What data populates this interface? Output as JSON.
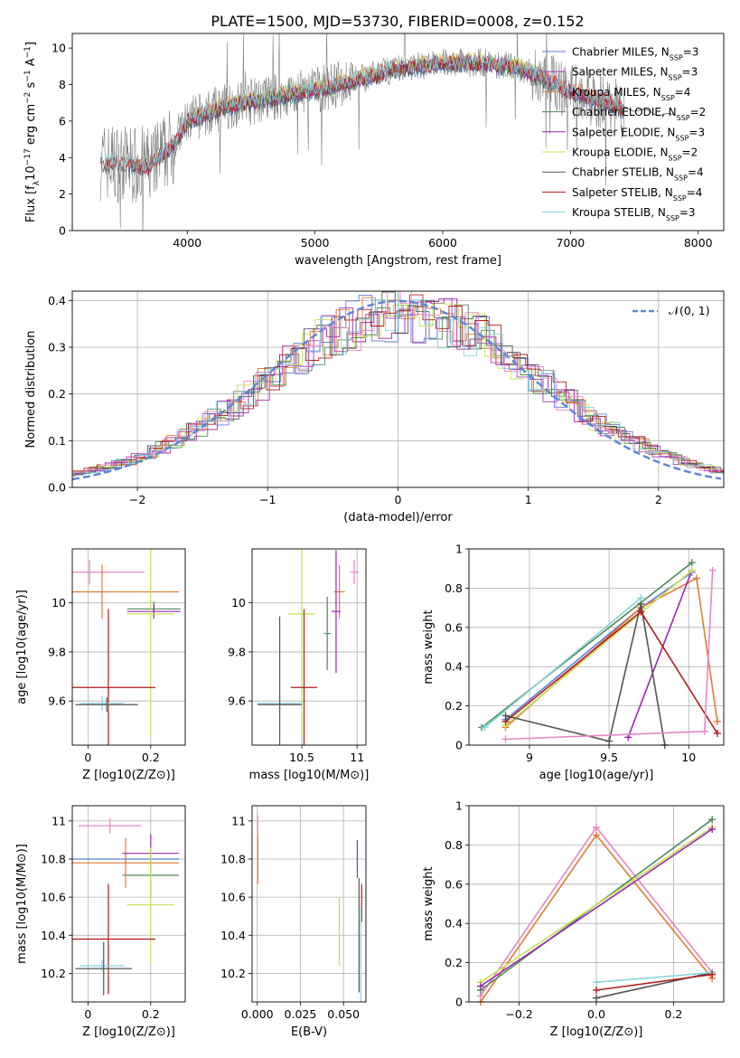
{
  "title": "PLATE=1500, MJD=53730, FIBERID=0008, z=0.152",
  "colors": {
    "Chabrier MILES": "#5b7fd6",
    "Salpeter MILES": "#a83bb5",
    "Kroupa MILES": "#e07b39",
    "Chabrier ELODIE": "#4f8a5c",
    "Salpeter ELODIE": "#9c27b0",
    "Kroupa ELODIE": "#c8e05a",
    "Chabrier STELIB": "#555555",
    "Salpeter STELIB": "#b01c1c",
    "Kroupa STELIB": "#87d4dc",
    "pink": "#e887c2",
    "data": "#808080",
    "normal": "#5b87d9"
  },
  "chart_data": [
    {
      "id": "spectrum",
      "type": "line",
      "xlabel": "wavelength [Angstrom, rest frame]",
      "ylabel": "Flux [f_λ 10^-17 erg cm^-2 s^-1 A^-1]",
      "xlim": [
        3100,
        8200
      ],
      "ylim": [
        0,
        10.8
      ],
      "xticks": [
        "4000",
        "5000",
        "6000",
        "7000",
        "8000"
      ],
      "yticks": [
        "0",
        "2",
        "4",
        "6",
        "8",
        "10"
      ],
      "legend_position": "top-right",
      "legend": [
        "Chabrier MILES, N_SSP=3",
        "Salpeter MILES, N_SSP=3",
        "Kroupa MILES, N_SSP=4",
        "Chabrier ELODIE, N_SSP=2",
        "Salpeter ELODIE, N_SSP=3",
        "Kroupa ELODIE, N_SSP=2",
        "Chabrier STELIB, N_SSP=4",
        "Salpeter STELIB, N_SSP=4",
        "Kroupa STELIB, N_SSP=3"
      ],
      "continuum": {
        "x": [
          3320,
          3500,
          3700,
          3900,
          4000,
          4300,
          4600,
          5000,
          5300,
          5600,
          6000,
          6300,
          6600,
          6800,
          6900,
          7000,
          7150,
          7300,
          7420
        ],
        "y": [
          3.8,
          3.7,
          3.5,
          4.8,
          6.0,
          6.8,
          7.2,
          7.7,
          8.2,
          8.8,
          9.2,
          9.2,
          8.9,
          8.3,
          8.0,
          7.6,
          7.3,
          7.0,
          6.6
        ]
      }
    },
    {
      "id": "residuals",
      "type": "line",
      "xlabel": "(data-model)/error",
      "ylabel": "Normed distribution",
      "xlim": [
        -2.5,
        2.5
      ],
      "ylim": [
        0,
        0.42
      ],
      "xticks": [
        "−2",
        "−1",
        "0",
        "1",
        "2"
      ],
      "yticks": [
        "0.0",
        "0.1",
        "0.2",
        "0.3",
        "0.4"
      ],
      "legend_position": "top-right",
      "legend": [
        "𝒩(0, 1)"
      ],
      "normal": {
        "mean": 0,
        "sigma": 1
      }
    },
    {
      "id": "age-vs-Z",
      "type": "scatter",
      "xlabel": "Z [log10(Z/Z⊙)]",
      "ylabel": "age  [log10(age/yr)]",
      "xlim": [
        -0.05,
        0.31
      ],
      "ylim": [
        9.42,
        10.22
      ],
      "xticks": [
        0,
        0.2
      ],
      "yticks": [
        9.6,
        9.8,
        10.0
      ],
      "points": [
        {
          "c": "pink",
          "x": 0.005,
          "y": 10.125,
          "xe": 0.175,
          "ye": 0.05
        },
        {
          "c": "Kroupa MILES",
          "x": 0.045,
          "y": 10.045,
          "xe": 0.245,
          "ye": 0.11
        },
        {
          "c": "Chabrier ELODIE",
          "x": 0.21,
          "y": 9.975,
          "xe": 0.085,
          "ye": 0.03
        },
        {
          "c": "Salpeter ELODIE",
          "x": 0.21,
          "y": 9.965,
          "xe": 0.085,
          "ye": 0.03
        },
        {
          "c": "Kroupa ELODIE",
          "x": 0.2,
          "y": 9.955,
          "xe": 0.075,
          "ye": 0.5
        },
        {
          "c": "Salpeter STELIB",
          "x": 0.065,
          "y": 9.655,
          "xe": 0.15,
          "ye": 0.32
        },
        {
          "c": "Kroupa STELIB",
          "x": 0.045,
          "y": 9.59,
          "xe": 0.07,
          "ye": 0.03
        },
        {
          "c": "Chabrier STELIB",
          "x": 0.06,
          "y": 9.585,
          "xe": 0.1,
          "ye": 0.03
        }
      ]
    },
    {
      "id": "age-vs-mass",
      "type": "scatter",
      "xlabel": "mass [log10(M/M⊙)]",
      "ylabel": "",
      "xlim": [
        10.05,
        11.08
      ],
      "ylim": [
        9.42,
        10.22
      ],
      "xticks": [
        10.5,
        11.0
      ],
      "yticks": [
        9.6,
        9.8,
        10.0
      ],
      "points": [
        {
          "c": "pink",
          "x": 10.975,
          "y": 10.125,
          "xe": 0.04,
          "ye": 0.05
        },
        {
          "c": "Kroupa MILES",
          "x": 10.84,
          "y": 10.045,
          "xe": 0.05,
          "ye": 0.11
        },
        {
          "c": "Chabrier ELODIE",
          "x": 10.73,
          "y": 9.875,
          "xe": 0.03,
          "ye": 0.15
        },
        {
          "c": "Salpeter ELODIE",
          "x": 10.81,
          "y": 9.965,
          "xe": 0.04,
          "ye": 0.25
        },
        {
          "c": "Kroupa ELODIE",
          "x": 10.5,
          "y": 9.955,
          "xe": 0.12,
          "ye": 0.5
        },
        {
          "c": "Salpeter STELIB",
          "x": 10.52,
          "y": 9.655,
          "xe": 0.12,
          "ye": 0.32
        },
        {
          "c": "Kroupa STELIB",
          "x": 10.3,
          "y": 9.59,
          "xe": 0.2,
          "ye": 0.03
        },
        {
          "c": "Chabrier STELIB",
          "x": 10.3,
          "y": 9.585,
          "xe": 0.2,
          "ye": 0.36
        }
      ]
    },
    {
      "id": "weight-vs-age",
      "type": "line",
      "xlabel": "age  [log10(age/yr)]",
      "ylabel": "mass weight",
      "xlim": [
        8.62,
        10.22
      ],
      "ylim": [
        0,
        1.0
      ],
      "xticks": [
        9.0,
        9.5,
        10.0
      ],
      "yticks": [
        0.0,
        0.2,
        0.4,
        0.6,
        0.8,
        1.0
      ],
      "series": [
        {
          "c": "Chabrier MILES",
          "x": [
            8.85,
            9.7,
            10.02
          ],
          "y": [
            0.13,
            0.7,
            0.88
          ]
        },
        {
          "c": "Kroupa MILES",
          "x": [
            8.85,
            9.7,
            10.05,
            10.18
          ],
          "y": [
            0.09,
            0.7,
            0.85,
            0.12
          ]
        },
        {
          "c": "Chabrier ELODIE",
          "x": [
            8.7,
            10.02
          ],
          "y": [
            0.09,
            0.93
          ]
        },
        {
          "c": "Salpeter ELODIE",
          "x": [
            9.62,
            10.02
          ],
          "y": [
            0.04,
            0.89
          ]
        },
        {
          "c": "Kroupa ELODIE",
          "x": [
            8.85,
            10.02
          ],
          "y": [
            0.1,
            0.89
          ]
        },
        {
          "c": "Chabrier STELIB",
          "x": [
            8.85,
            9.5,
            9.7,
            9.85
          ],
          "y": [
            0.15,
            0.02,
            0.72,
            0.0
          ]
        },
        {
          "c": "Salpeter STELIB",
          "x": [
            8.85,
            9.7,
            10.18
          ],
          "y": [
            0.12,
            0.68,
            0.06
          ]
        },
        {
          "c": "Kroupa STELIB",
          "x": [
            8.72,
            9.7
          ],
          "y": [
            0.09,
            0.75
          ]
        },
        {
          "c": "pink",
          "x": [
            8.85,
            10.1,
            10.15
          ],
          "y": [
            0.03,
            0.07,
            0.89
          ]
        }
      ]
    },
    {
      "id": "mass-vs-Z",
      "type": "scatter",
      "xlabel": "Z [log10(Z/Z⊙)]",
      "ylabel": "mass [log10(M/M⊙)]",
      "xlim": [
        -0.05,
        0.31
      ],
      "ylim": [
        10.05,
        11.08
      ],
      "xticks": [
        0,
        0.2
      ],
      "yticks": [
        10.2,
        10.4,
        10.6,
        10.8,
        11.0
      ],
      "points": [
        {
          "c": "pink",
          "x": 0.07,
          "y": 10.975,
          "xe": 0.1,
          "ye": 0.04
        },
        {
          "c": "Chabrier MILES",
          "x": 0.12,
          "y": 10.8,
          "xe": 0.17,
          "ye": 0.03
        },
        {
          "c": "Kroupa MILES",
          "x": 0.12,
          "y": 10.78,
          "xe": 0.17,
          "ye": 0.13
        },
        {
          "c": "Salpeter ELODIE",
          "x": 0.2,
          "y": 10.83,
          "xe": 0.09,
          "ye": 0.1
        },
        {
          "c": "Chabrier ELODIE",
          "x": 0.2,
          "y": 10.715,
          "xe": 0.09,
          "ye": 0.12
        },
        {
          "c": "Kroupa ELODIE",
          "x": 0.2,
          "y": 10.56,
          "xe": 0.075,
          "ye": 0.3
        },
        {
          "c": "Salpeter STELIB",
          "x": 0.065,
          "y": 10.38,
          "xe": 0.15,
          "ye": 0.29
        },
        {
          "c": "Kroupa STELIB",
          "x": 0.045,
          "y": 10.24,
          "xe": 0.07,
          "ye": 0.03
        },
        {
          "c": "Chabrier STELIB",
          "x": 0.05,
          "y": 10.225,
          "xe": 0.09,
          "ye": 0.14
        }
      ]
    },
    {
      "id": "mass-vs-ebv",
      "type": "scatter",
      "xlabel": "E(B-V)",
      "ylabel": "",
      "xlim": [
        -0.003,
        0.063
      ],
      "ylim": [
        10.05,
        11.08
      ],
      "xticks": [
        "0.000",
        "0.025",
        "0.050"
      ],
      "yticks": [
        10.2,
        10.4,
        10.6,
        10.8,
        11.0
      ],
      "points": [
        {
          "c": "pink",
          "x": 0.0003,
          "y": 10.98,
          "xe": 0.0,
          "ye": 0.05
        },
        {
          "c": "Kroupa MILES",
          "x": 0.0003,
          "y": 10.8,
          "xe": 0.0,
          "ye": 0.13
        },
        {
          "c": "Salpeter ELODIE",
          "x": 0.058,
          "y": 10.8,
          "xe": 0.0,
          "ye": 0.1
        },
        {
          "c": "Kroupa ELODIE",
          "x": 0.0475,
          "y": 10.42,
          "xe": 0.0,
          "ye": 0.18
        },
        {
          "c": "Salpeter STELIB",
          "x": 0.0605,
          "y": 10.57,
          "xe": 0.0,
          "ye": 0.1
        },
        {
          "c": "Chabrier STELIB",
          "x": 0.059,
          "y": 10.4,
          "xe": 0.0,
          "ye": 0.3
        },
        {
          "c": "Kroupa STELIB",
          "x": 0.06,
          "y": 10.3,
          "xe": 0.0,
          "ye": 0.25
        }
      ]
    },
    {
      "id": "weight-vs-Z",
      "type": "line",
      "xlabel": "Z [log10(Z/Z⊙)]",
      "ylabel": "mass weight",
      "xlim": [
        -0.33,
        0.33
      ],
      "ylim": [
        0,
        1.0
      ],
      "xticks": [
        "−0.2",
        "0.0",
        "0.2"
      ],
      "yticks": [
        0.0,
        0.2,
        0.4,
        0.6,
        0.8,
        1.0
      ],
      "series": [
        {
          "c": "Kroupa MILES",
          "x": [
            -0.3,
            0.0,
            0.3
          ],
          "y": [
            0.0,
            0.85,
            0.12
          ]
        },
        {
          "c": "pink",
          "x": [
            -0.3,
            0.0,
            0.3
          ],
          "y": [
            0.03,
            0.89,
            0.15
          ]
        },
        {
          "c": "Chabrier ELODIE",
          "x": [
            -0.3,
            0.3
          ],
          "y": [
            0.06,
            0.93
          ]
        },
        {
          "c": "Kroupa ELODIE",
          "x": [
            -0.3,
            0.3
          ],
          "y": [
            0.1,
            0.89
          ]
        },
        {
          "c": "Salpeter ELODIE",
          "x": [
            -0.3,
            0.3
          ],
          "y": [
            0.08,
            0.88
          ]
        },
        {
          "c": "Chabrier STELIB",
          "x": [
            0.0,
            0.3
          ],
          "y": [
            0.02,
            0.15
          ]
        },
        {
          "c": "Kroupa STELIB",
          "x": [
            0.0,
            0.3
          ],
          "y": [
            0.1,
            0.15
          ]
        },
        {
          "c": "Salpeter STELIB",
          "x": [
            0.0,
            0.3
          ],
          "y": [
            0.06,
            0.14
          ]
        }
      ]
    }
  ]
}
